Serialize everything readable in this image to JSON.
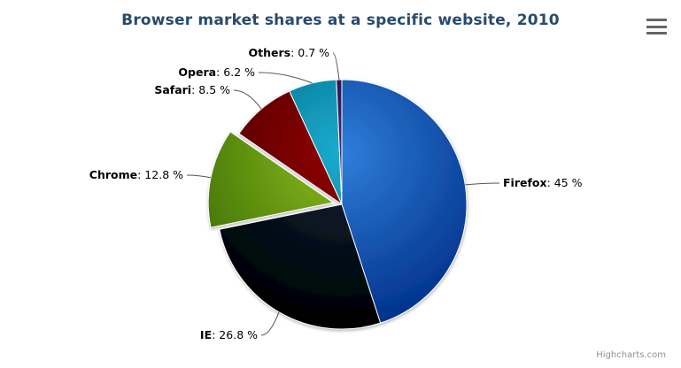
{
  "header": {
    "title": "Browser market shares at a specific website, 2010"
  },
  "credits": {
    "label": "Highcharts.com"
  },
  "toolbar": {
    "export_icon": "hamburger-icon"
  },
  "colors": {
    "title": "#274b6d",
    "data_label": "#000000",
    "connector": "#555555",
    "slice_border": "#ffffff",
    "credits": "#909090",
    "export_icon": "#666666",
    "background": "#ffffff"
  },
  "chart_data": {
    "type": "pie",
    "title": "Browser market shares at a specific website, 2010",
    "legend": "none",
    "grid": "off",
    "unit": "%",
    "start_angle_deg": 0,
    "direction": "clockwise",
    "label_format": "{name}: {value} %",
    "points": [
      {
        "name": "Firefox",
        "value": 45,
        "value_label": "45 %",
        "color": "#2f7ed8",
        "sliced": false
      },
      {
        "name": "IE",
        "value": 26.8,
        "value_label": "26.8 %",
        "color": "#0d233a",
        "sliced": false
      },
      {
        "name": "Chrome",
        "value": 12.8,
        "value_label": "12.8 %",
        "color": "#8bbc21",
        "sliced": true
      },
      {
        "name": "Safari",
        "value": 8.5,
        "value_label": "8.5 %",
        "color": "#910000",
        "sliced": false
      },
      {
        "name": "Opera",
        "value": 6.2,
        "value_label": "6.2 %",
        "color": "#1aadce",
        "sliced": false
      },
      {
        "name": "Others",
        "value": 0.7,
        "value_label": "0.7 %",
        "color": "#492970",
        "sliced": false
      }
    ]
  }
}
